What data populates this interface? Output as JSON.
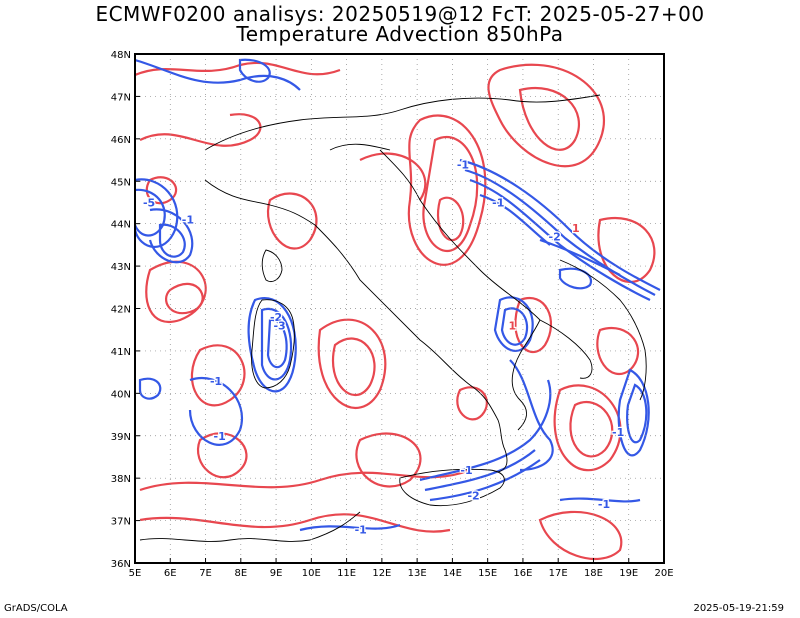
{
  "title_line1": "ECMWF0200 analisys: 20250519@12 FcT: 2025-05-27+00",
  "title_line2": "Temperature Advection 850hPa",
  "footer_left": "GrADS/COLA",
  "footer_right": "2025-05-19-21:59",
  "colors": {
    "warm": "#e8474f",
    "cold": "#3458e6",
    "grid": "#888888",
    "coast": "#000000"
  },
  "axes": {
    "lon_labels": [
      "5E",
      "6E",
      "7E",
      "8E",
      "9E",
      "10E",
      "11E",
      "12E",
      "13E",
      "14E",
      "15E",
      "16E",
      "17E",
      "18E",
      "19E",
      "20E"
    ],
    "lat_labels": [
      "48N",
      "47N",
      "46N",
      "45N",
      "44N",
      "43N",
      "42N",
      "41N",
      "40N",
      "39N",
      "38N",
      "37N",
      "36N"
    ],
    "lon_range": [
      5,
      20
    ],
    "lat_range": [
      36,
      48
    ]
  },
  "contour_labels": [
    {
      "text": "-1",
      "lon": 6.5,
      "lat": 44.0
    },
    {
      "text": "-1",
      "lon": 7.3,
      "lat": 40.2
    },
    {
      "text": "-1",
      "lon": 7.4,
      "lat": 38.9
    },
    {
      "text": "-1",
      "lon": 11.4,
      "lat": 36.7
    },
    {
      "text": "-1",
      "lon": 14.3,
      "lat": 45.3
    },
    {
      "text": "-1",
      "lon": 14.4,
      "lat": 38.1
    },
    {
      "text": "-1",
      "lon": 18.7,
      "lat": 39.0
    },
    {
      "text": "-1",
      "lon": 18.3,
      "lat": 37.3
    },
    {
      "text": "-2",
      "lon": 9.0,
      "lat": 41.7
    },
    {
      "text": "-2",
      "lon": 14.6,
      "lat": 37.5
    },
    {
      "text": "-2",
      "lon": 16.9,
      "lat": 43.6
    },
    {
      "text": "-3",
      "lon": 9.1,
      "lat": 41.5
    },
    {
      "text": "-5",
      "lon": 5.4,
      "lat": 44.4
    },
    {
      "text": "1",
      "lon": 15.7,
      "lat": 41.5
    },
    {
      "text": "1",
      "lon": 17.5,
      "lat": 43.8
    },
    {
      "text": "-1",
      "lon": 15.3,
      "lat": 44.4
    }
  ]
}
